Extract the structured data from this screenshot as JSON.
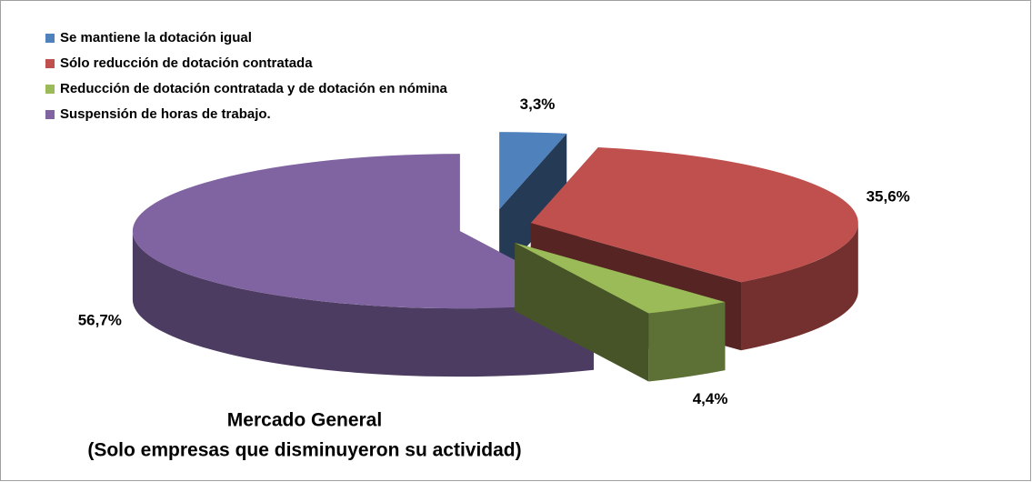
{
  "chart_data": {
    "type": "pie3d",
    "title": "Mercado General",
    "subtitle": "(Solo empresas que disminuyeron su actividad)",
    "legend": "top-left",
    "categories": [
      "Se mantiene la dotación igual",
      "Sólo reducción de dotación contratada",
      "Reducción de dotación contratada y de dotación en nómina",
      "Suspensión de horas de trabajo."
    ],
    "values": [
      3.3,
      35.6,
      4.4,
      56.7
    ],
    "value_labels": [
      "3,3%",
      "35,6%",
      "4,4%",
      "56,7%"
    ],
    "colors": [
      "#4f81bd",
      "#c0504d",
      "#9bbb59",
      "#8064a2"
    ]
  }
}
